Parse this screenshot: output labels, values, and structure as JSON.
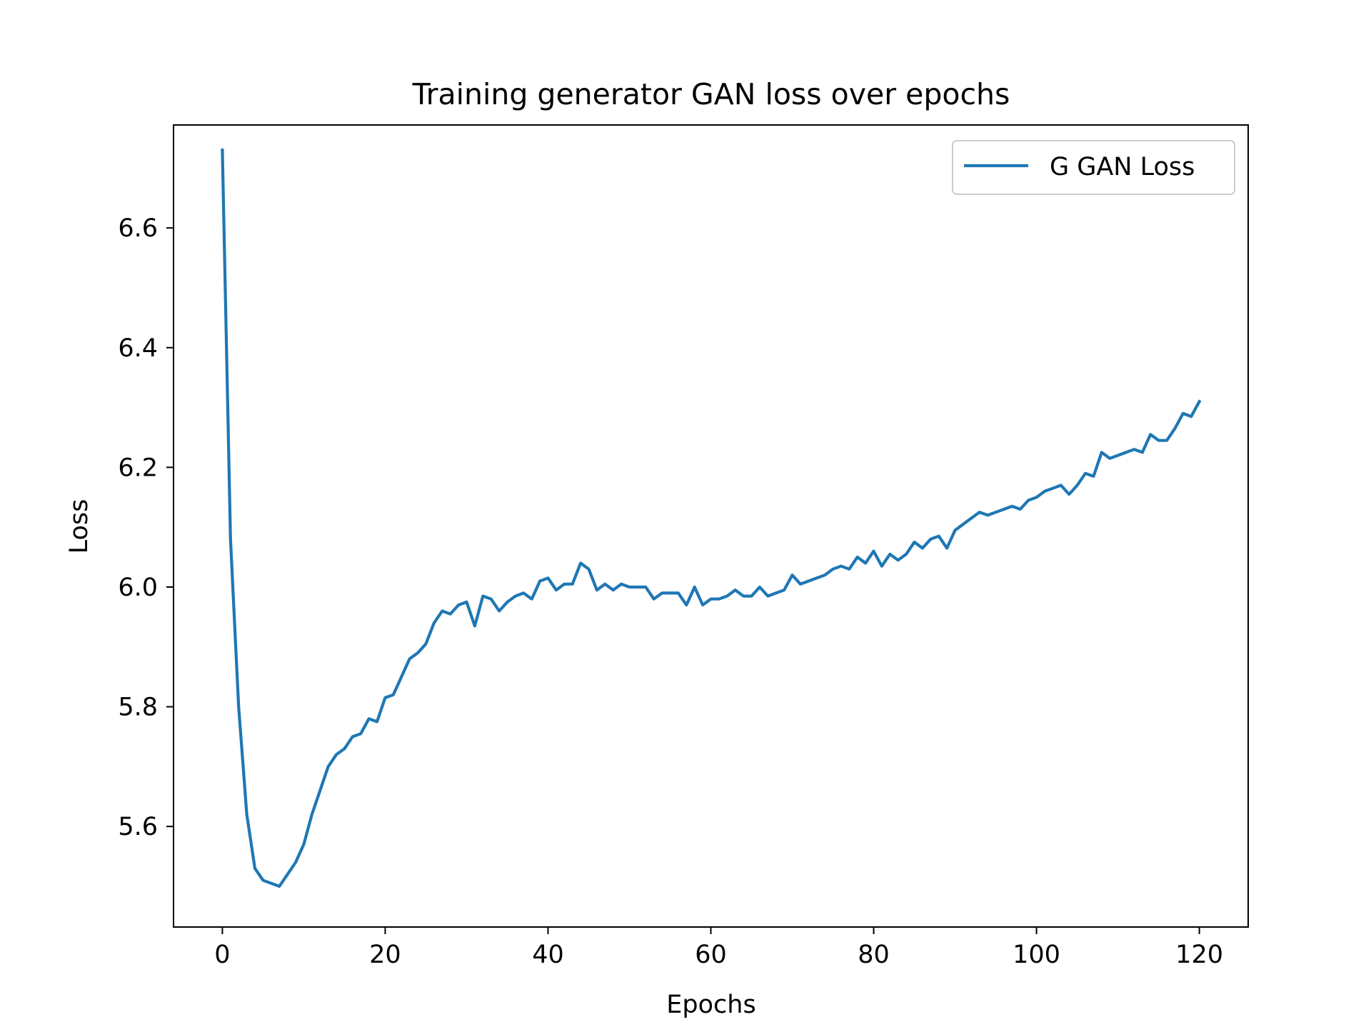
{
  "chart_data": {
    "type": "line",
    "title": "Training generator GAN loss over epochs",
    "xlabel": "Epochs",
    "ylabel": "Loss",
    "xlim": [
      -6,
      126
    ],
    "ylim": [
      5.432,
      6.772
    ],
    "xticks": [
      0,
      20,
      40,
      60,
      80,
      100,
      120
    ],
    "yticks": [
      5.6,
      5.8,
      6.0,
      6.2,
      6.4,
      6.6
    ],
    "grid": false,
    "legend": "top-right",
    "color": "#1f77b4",
    "series": [
      {
        "name": "G GAN Loss",
        "x": [
          0,
          1,
          2,
          3,
          4,
          5,
          6,
          7,
          8,
          9,
          10,
          11,
          12,
          13,
          14,
          15,
          16,
          17,
          18,
          19,
          20,
          21,
          22,
          23,
          24,
          25,
          26,
          27,
          28,
          29,
          30,
          31,
          32,
          33,
          34,
          35,
          36,
          37,
          38,
          39,
          40,
          41,
          42,
          43,
          44,
          45,
          46,
          47,
          48,
          49,
          50,
          51,
          52,
          53,
          54,
          55,
          56,
          57,
          58,
          59,
          60,
          61,
          62,
          63,
          64,
          65,
          66,
          67,
          68,
          69,
          70,
          71,
          72,
          73,
          74,
          75,
          76,
          77,
          78,
          79,
          80,
          81,
          82,
          83,
          84,
          85,
          86,
          87,
          88,
          89,
          90,
          91,
          92,
          93,
          94,
          95,
          96,
          97,
          98,
          99,
          100,
          101,
          102,
          103,
          104,
          105,
          106,
          107,
          108,
          109,
          110,
          111,
          112,
          113,
          114,
          115,
          116,
          117,
          118,
          119,
          120
        ],
        "values": [
          6.73,
          6.08,
          5.8,
          5.62,
          5.53,
          5.51,
          5.505,
          5.5,
          5.52,
          5.54,
          5.57,
          5.62,
          5.66,
          5.7,
          5.72,
          5.73,
          5.75,
          5.755,
          5.78,
          5.775,
          5.815,
          5.82,
          5.85,
          5.88,
          5.89,
          5.905,
          5.94,
          5.96,
          5.955,
          5.97,
          5.975,
          5.935,
          5.985,
          5.98,
          5.96,
          5.975,
          5.985,
          5.99,
          5.98,
          6.01,
          6.015,
          5.995,
          6.005,
          6.005,
          6.04,
          6.03,
          5.995,
          6.005,
          5.995,
          6.005,
          6.0,
          6.0,
          6.0,
          5.98,
          5.99,
          5.99,
          5.99,
          5.97,
          6.0,
          5.97,
          5.98,
          5.98,
          5.985,
          5.995,
          5.985,
          5.985,
          6.0,
          5.985,
          5.99,
          5.995,
          6.02,
          6.005,
          6.01,
          6.015,
          6.02,
          6.03,
          6.035,
          6.03,
          6.05,
          6.04,
          6.06,
          6.035,
          6.055,
          6.045,
          6.055,
          6.075,
          6.065,
          6.08,
          6.085,
          6.065,
          6.095,
          6.105,
          6.115,
          6.125,
          6.12,
          6.125,
          6.13,
          6.135,
          6.13,
          6.145,
          6.15,
          6.16,
          6.165,
          6.17,
          6.155,
          6.17,
          6.19,
          6.185,
          6.225,
          6.215,
          6.22,
          6.225,
          6.23,
          6.225,
          6.255,
          6.245,
          6.245,
          6.265,
          6.29,
          6.285,
          6.31
        ]
      }
    ]
  }
}
